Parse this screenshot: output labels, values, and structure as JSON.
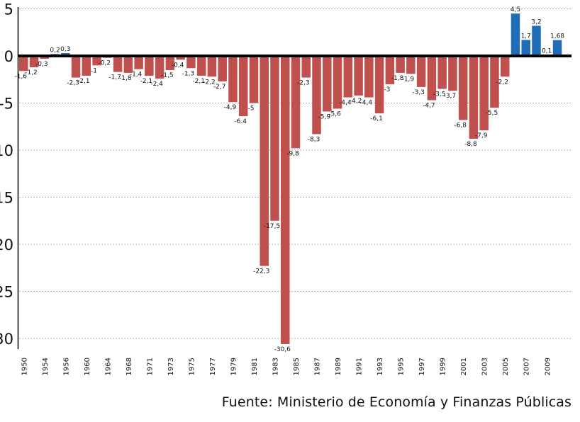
{
  "chart_data": {
    "type": "bar",
    "title": "",
    "xlabel": "",
    "ylabel": "",
    "ylim": [
      -30.6,
      5
    ],
    "yticks": [
      5,
      0,
      -5,
      -10,
      -15,
      -20,
      -25,
      -30
    ],
    "ytick_labels": [
      "5",
      "0",
      "-5",
      "-10",
      "-15",
      "-20",
      "-25",
      "-30"
    ],
    "grid": "horizontal dotted",
    "colors": {
      "negative": "#c0504d",
      "positive": "#1f6db6",
      "zero_line": "#000000",
      "grid": "#9a9a9a"
    },
    "x_tick_labels": [
      "1950",
      "1954",
      "1956",
      "1960",
      "1964",
      "1968",
      "1971",
      "1973",
      "1975",
      "1977",
      "1979",
      "1981",
      "1983",
      "1985",
      "1987",
      "1989",
      "1991",
      "1993",
      "1995",
      "1997",
      "1999",
      "2001",
      "2003",
      "2005",
      "2007",
      "2009"
    ],
    "x_tick_every": 2,
    "values": [
      -1.6,
      -1.2,
      -0.3,
      0.2,
      0.3,
      -2.3,
      -2.1,
      -1,
      -0.2,
      -1.7,
      -1.8,
      -1.4,
      -2.1,
      -2.4,
      -1.5,
      -0.4,
      -1.3,
      -2.1,
      -2.2,
      -2.7,
      -4.9,
      -6.4,
      -5,
      -22.3,
      -17.5,
      -30.6,
      -9.8,
      -2.3,
      -8.3,
      -5.9,
      -5.6,
      -4.4,
      -4.2,
      -4.4,
      -6.1,
      -3,
      -1.8,
      -1.9,
      -3.3,
      -4.7,
      -3.5,
      -3.7,
      -6.8,
      -8.8,
      -7.9,
      -5.5,
      -2.2,
      4.5,
      1.7,
      3.2,
      0.1,
      1.68
    ],
    "data_labels": [
      "-1,6",
      "-1,2",
      "-0,3",
      "0,2",
      "0,3",
      "-2,3",
      "-2,1",
      "-1",
      "-0,2",
      "-1,7",
      "-1,8",
      "-1,4",
      "-2,1",
      "-2,4",
      "-1,5",
      "-0,4",
      "-1,3",
      "-2,1",
      "-2,2",
      "-2,7",
      "-4,9",
      "-6.4",
      "-5",
      "-22,3",
      "-17,5",
      "-30,6",
      "-9,8",
      "-2,3",
      "-8,3",
      "-5,9",
      "-5,6",
      "-4,4",
      "-4,2",
      "-4,4",
      "-6,1",
      "-3",
      "-1,8",
      "-1,9",
      "-3,3",
      "-4,7",
      "-3,5",
      "-3,7",
      "-6,8",
      "-8,8",
      "-7,9",
      "-5,5",
      "-2,2",
      "4,5",
      "1,7",
      "3,2",
      "0,1",
      "1,68"
    ]
  },
  "source": "Fuente: Ministerio de Economía y Finanzas Públicas"
}
